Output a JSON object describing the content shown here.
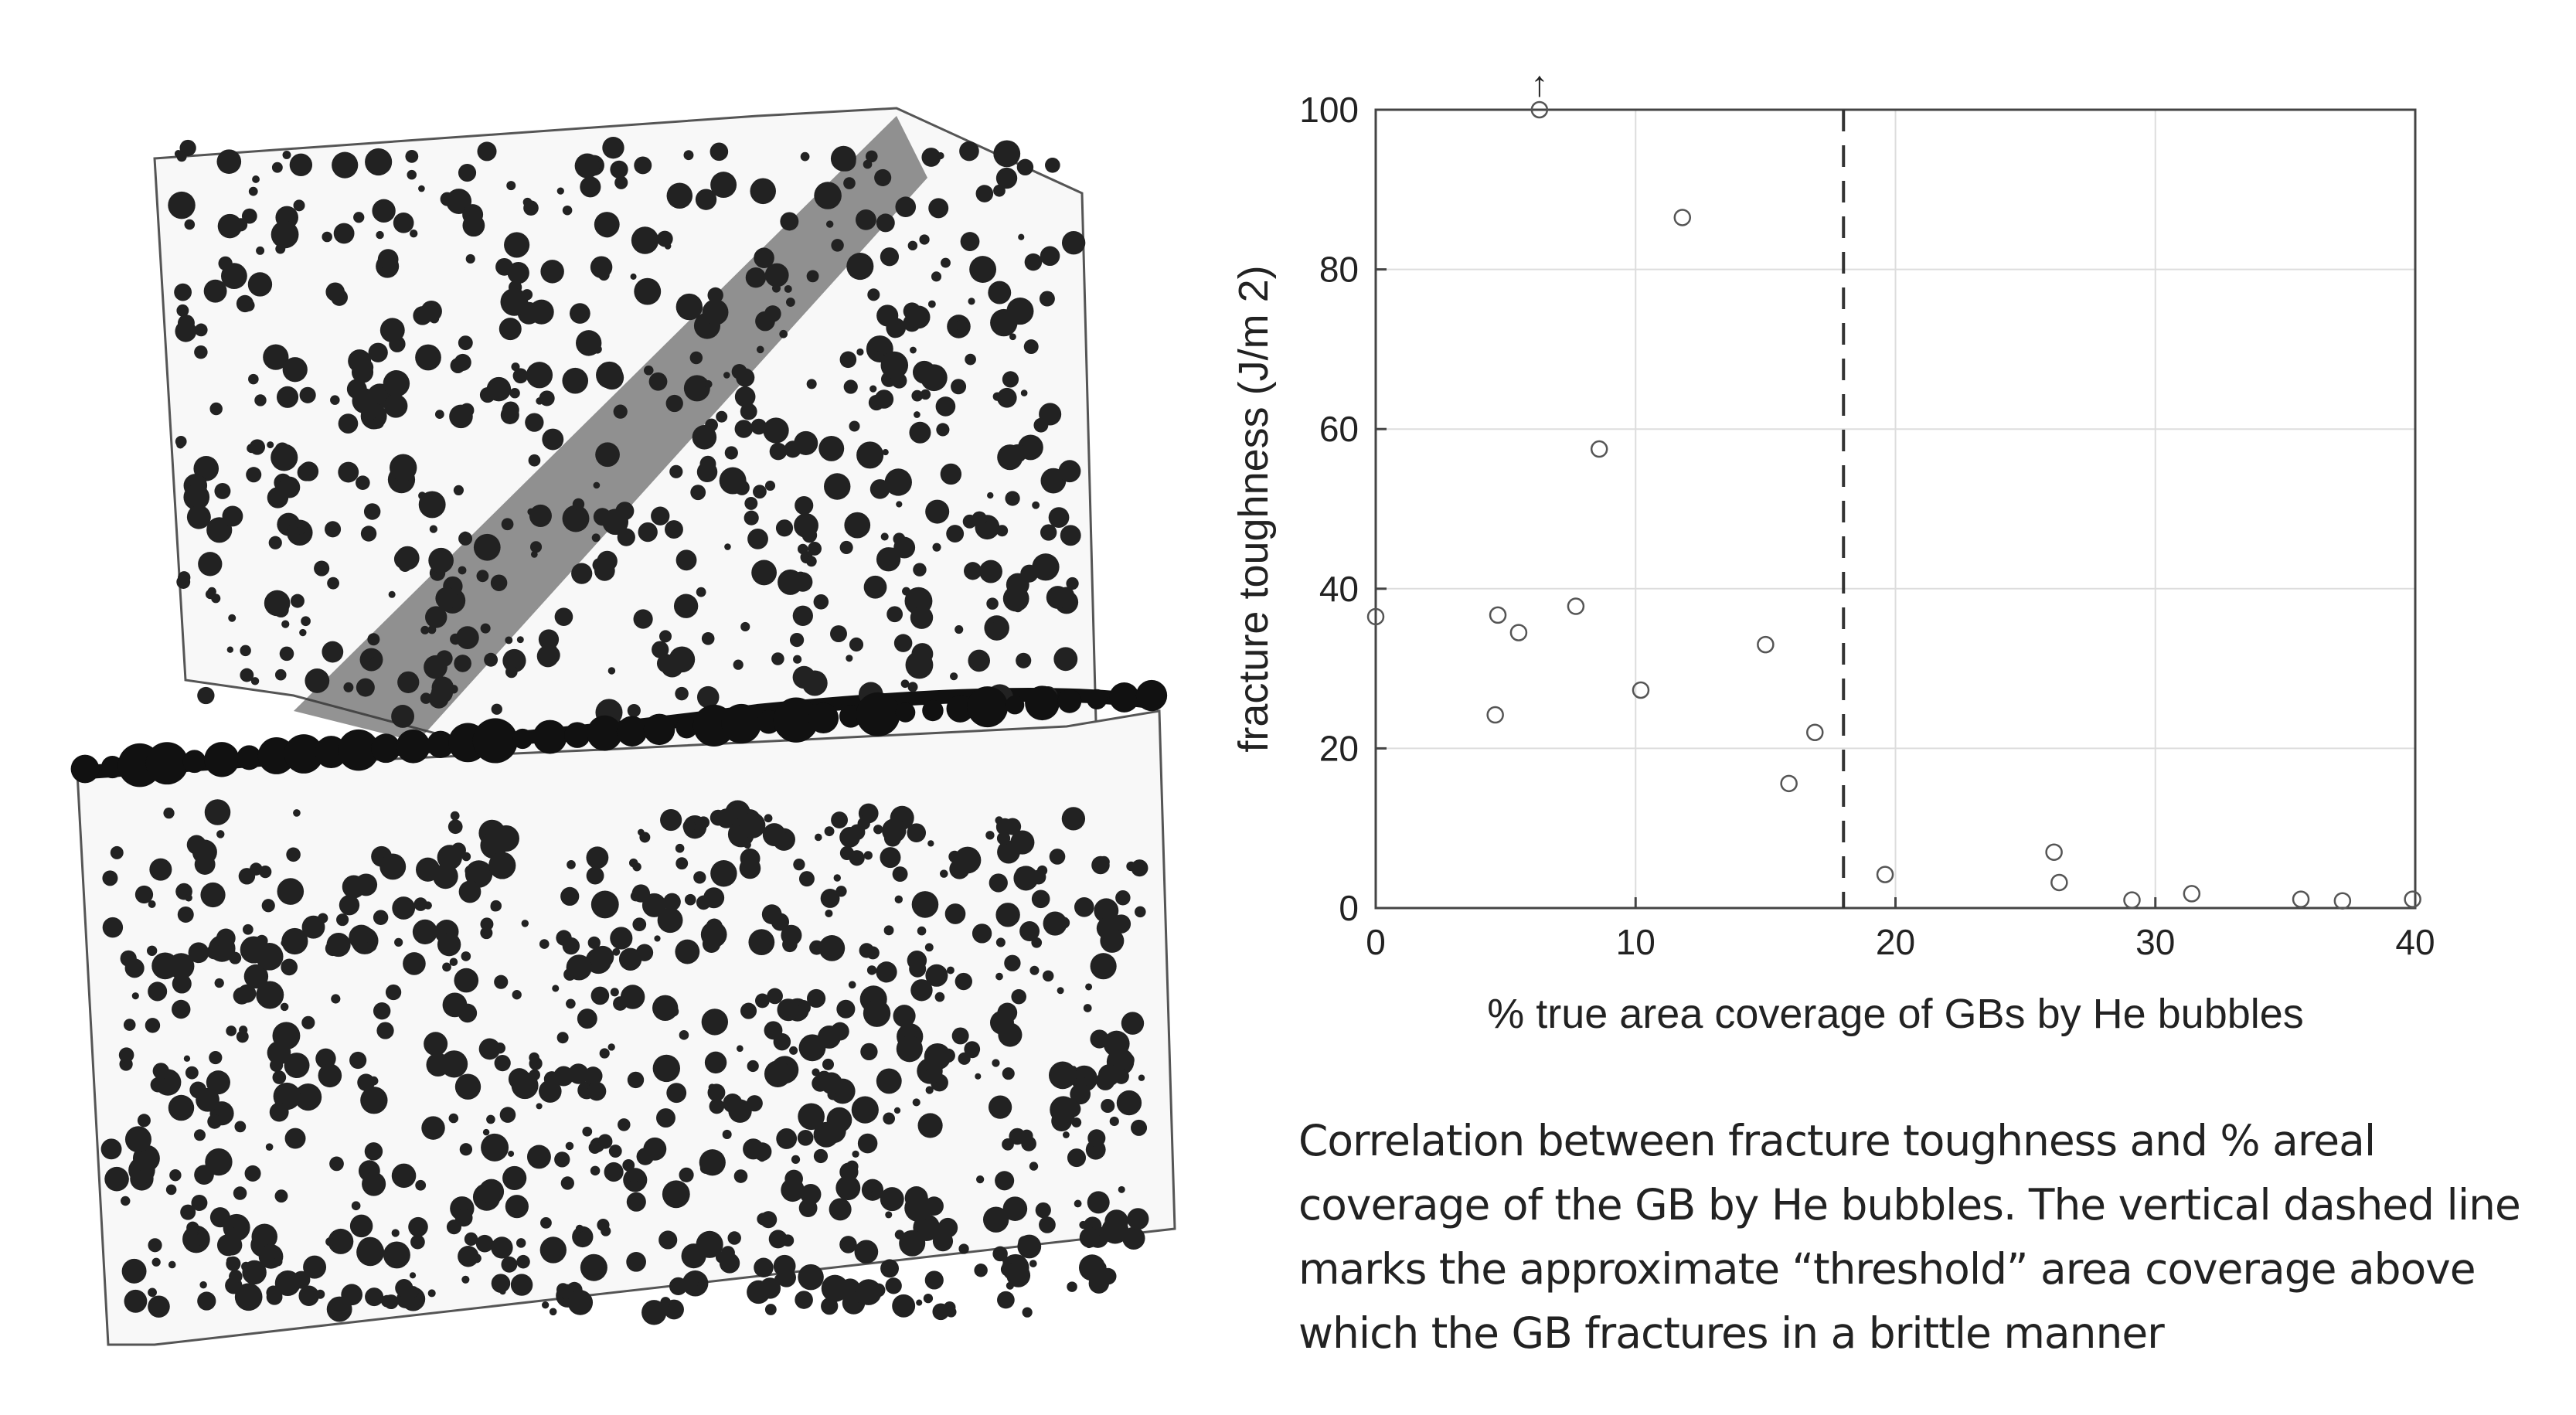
{
  "chart_data": {
    "type": "scatter",
    "xlabel": "% true area coverage of GBs by He bubbles",
    "ylabel": "fracture toughness (J/m 2)",
    "xlim": [
      0,
      40
    ],
    "ylim": [
      0,
      100
    ],
    "xticks": [
      "0",
      "10",
      "20",
      "30",
      "40"
    ],
    "yticks": [
      "0",
      "20",
      "40",
      "60",
      "80",
      "100"
    ],
    "grid": true,
    "threshold_x": 18,
    "overflow_marker": {
      "x": 6.3,
      "y": 100,
      "symbol": "↑"
    },
    "points": [
      {
        "x": 0,
        "y": 36.5
      },
      {
        "x": 4.6,
        "y": 24.2
      },
      {
        "x": 4.7,
        "y": 36.7
      },
      {
        "x": 5.5,
        "y": 34.5
      },
      {
        "x": 6.3,
        "y": 100
      },
      {
        "x": 7.7,
        "y": 37.8
      },
      {
        "x": 8.6,
        "y": 57.5
      },
      {
        "x": 10.2,
        "y": 27.3
      },
      {
        "x": 11.8,
        "y": 86.5
      },
      {
        "x": 15.0,
        "y": 33.0
      },
      {
        "x": 15.9,
        "y": 15.6
      },
      {
        "x": 16.9,
        "y": 22.0
      },
      {
        "x": 19.6,
        "y": 4.2
      },
      {
        "x": 26.1,
        "y": 7.0
      },
      {
        "x": 26.3,
        "y": 3.2
      },
      {
        "x": 29.1,
        "y": 1.0
      },
      {
        "x": 31.4,
        "y": 1.8
      },
      {
        "x": 35.6,
        "y": 1.1
      },
      {
        "x": 37.2,
        "y": 0.9
      },
      {
        "x": 39.9,
        "y": 1.1
      }
    ]
  },
  "caption": {
    "line1": "Correlation between fracture toughness and % areal",
    "line2": "coverage of the GB by He bubbles. The vertical dashed line",
    "line3": "marks the approximate “threshold” area coverage above",
    "line4": "which the GB fractures in a brittle manner"
  }
}
